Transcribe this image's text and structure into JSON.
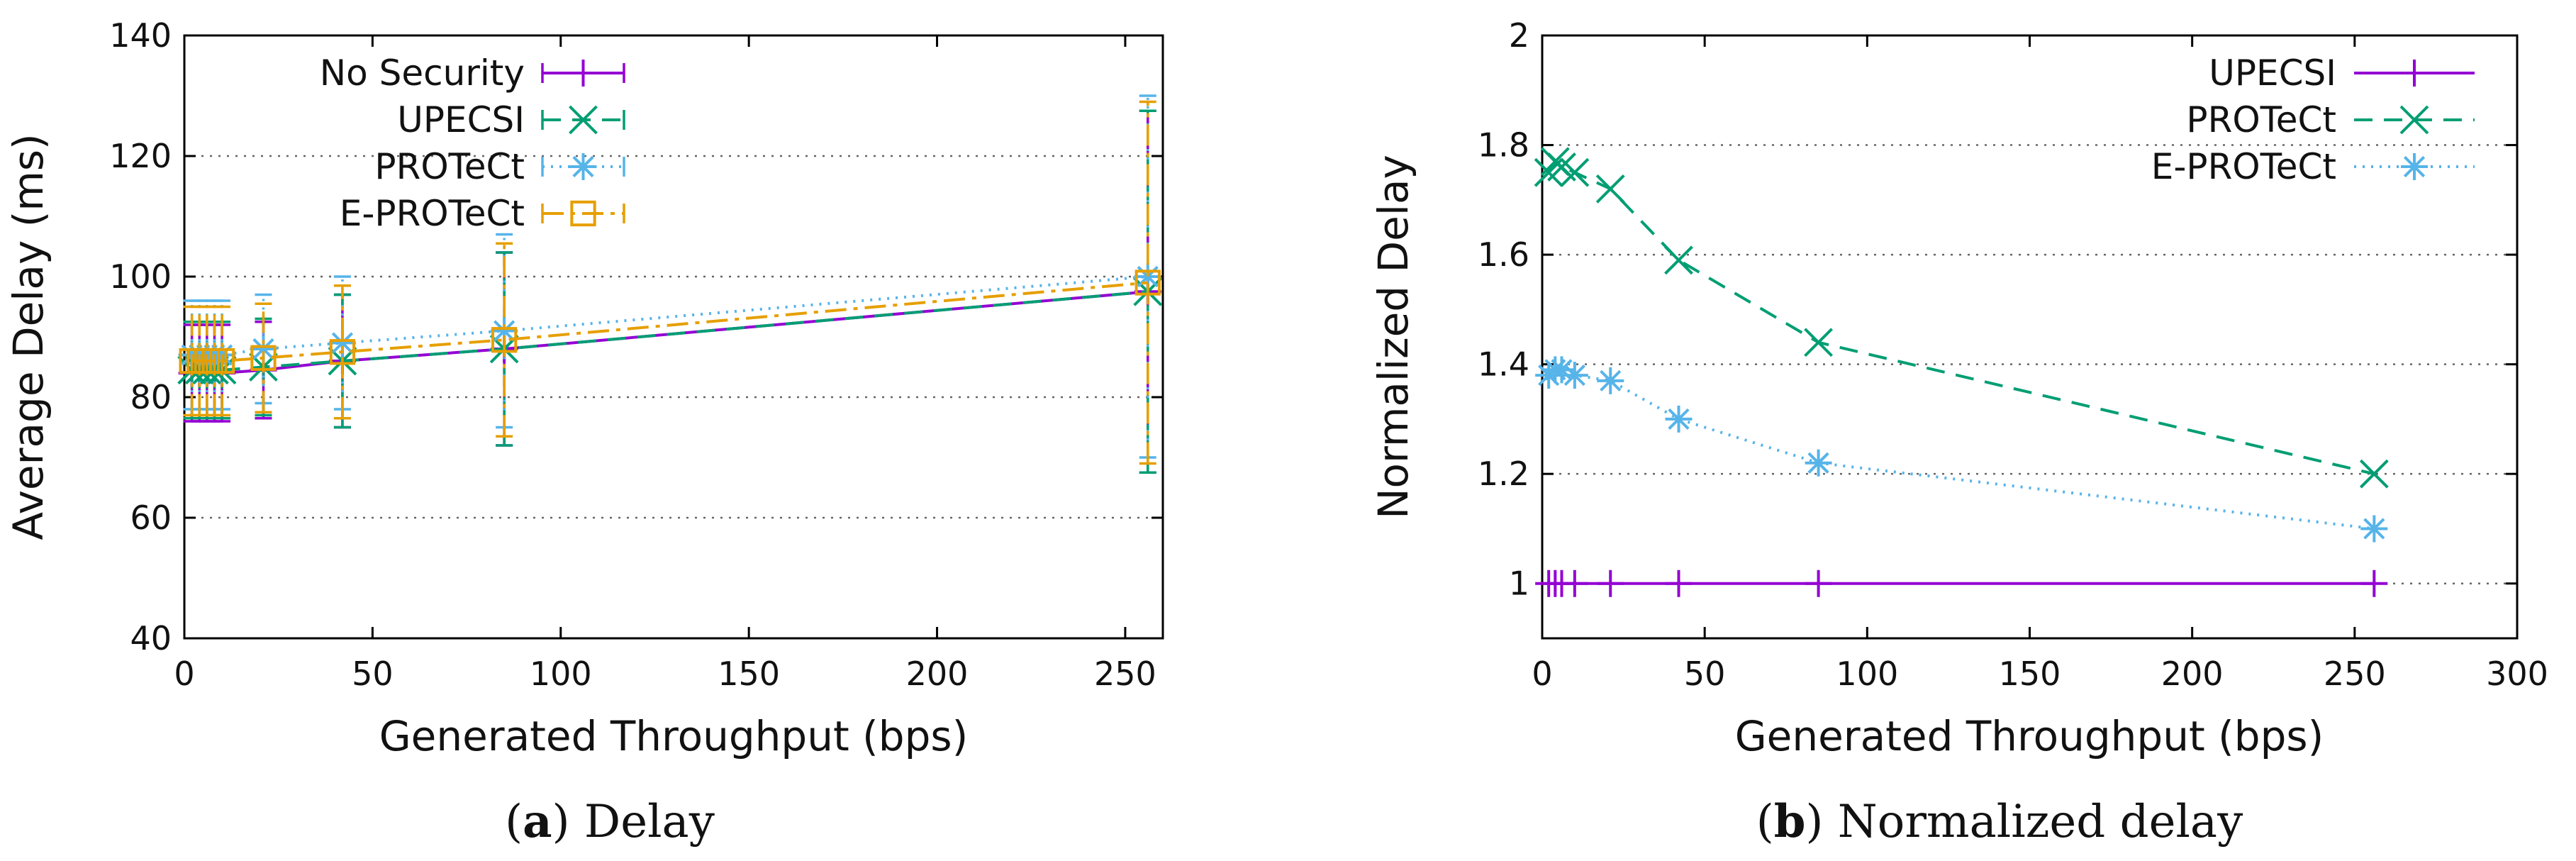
{
  "chart_data": [
    {
      "type": "line",
      "id": "a",
      "caption_letter": "a",
      "caption_text": "Delay",
      "xlabel": "Generated Throughput (bps)",
      "ylabel": "Average Delay (ms)",
      "xlim": [
        0,
        260
      ],
      "ylim": [
        40,
        140
      ],
      "xticks": [
        0,
        50,
        100,
        150,
        200,
        250
      ],
      "yticks": [
        40,
        60,
        80,
        100,
        120,
        140
      ],
      "ygrid": true,
      "error_bars": true,
      "legend_position": "top-left",
      "x": [
        2,
        4,
        6,
        8,
        10,
        21,
        42,
        85,
        256
      ],
      "series": [
        {
          "name": "No Security",
          "color": "#9400d3",
          "dash": "",
          "marker": "plus",
          "values": [
            84,
            84,
            84,
            84,
            84,
            84.5,
            86,
            88,
            97.5
          ],
          "err": [
            8,
            8,
            8,
            8,
            8,
            8,
            11,
            16,
            30
          ]
        },
        {
          "name": "UPECSI",
          "color": "#009e73",
          "dash": "26,16",
          "marker": "x",
          "values": [
            84.5,
            84.5,
            84.5,
            84.5,
            84.5,
            85,
            86,
            88,
            97.5
          ],
          "err": [
            8,
            8,
            8,
            8,
            8,
            8,
            11,
            16,
            30
          ]
        },
        {
          "name": "PROTeCt",
          "color": "#56b4e9",
          "dash": "3,9",
          "marker": "star",
          "values": [
            87,
            87,
            87,
            87,
            87,
            88,
            89,
            91,
            100
          ],
          "err": [
            9,
            9,
            9,
            9,
            9,
            9,
            11,
            16,
            30
          ]
        },
        {
          "name": "E-PROTeCt",
          "color": "#e69f00",
          "dash": "30,10,6,10",
          "marker": "square",
          "values": [
            86,
            86,
            86,
            86,
            86,
            86.5,
            87.5,
            89.5,
            99
          ],
          "err": [
            9,
            9,
            9,
            9,
            9,
            9,
            11,
            16,
            30
          ]
        }
      ]
    },
    {
      "type": "line",
      "id": "b",
      "caption_letter": "b",
      "caption_text": "Normalized delay",
      "xlabel": "Generated Throughput (bps)",
      "ylabel": "Normalized Delay",
      "xlim": [
        0,
        300
      ],
      "ylim": [
        0.9,
        2
      ],
      "xticks": [
        0,
        50,
        100,
        150,
        200,
        250,
        300
      ],
      "yticks": [
        1,
        1.2,
        1.4,
        1.6,
        1.8,
        2
      ],
      "ygrid": true,
      "error_bars": false,
      "legend_position": "top-right",
      "x": [
        2,
        4,
        6,
        10,
        21,
        42,
        85,
        256
      ],
      "series": [
        {
          "name": "UPECSI",
          "color": "#9400d3",
          "dash": "",
          "marker": "plus",
          "values": [
            1,
            1,
            1,
            1,
            1,
            1,
            1,
            1
          ]
        },
        {
          "name": "PROTeCt",
          "color": "#009e73",
          "dash": "26,16",
          "marker": "x",
          "values": [
            1.75,
            1.77,
            1.76,
            1.75,
            1.72,
            1.59,
            1.44,
            1.2
          ]
        },
        {
          "name": "E-PROTeCt",
          "color": "#56b4e9",
          "dash": "3,9",
          "marker": "star",
          "values": [
            1.38,
            1.39,
            1.39,
            1.38,
            1.37,
            1.3,
            1.22,
            1.1
          ]
        }
      ]
    }
  ]
}
